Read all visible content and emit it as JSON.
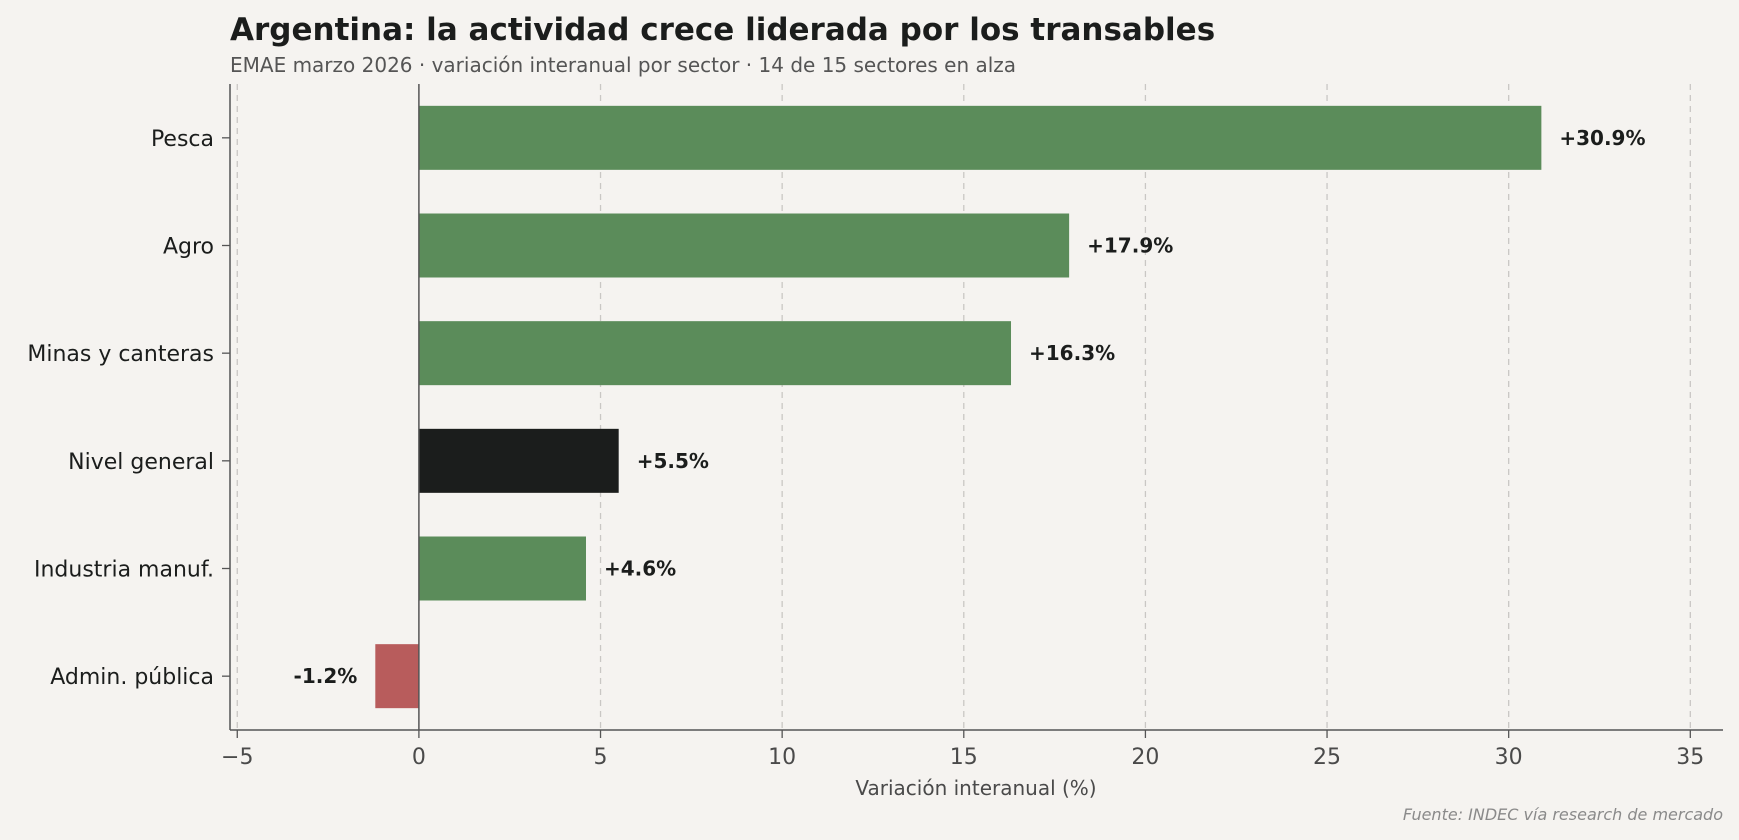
{
  "title": "Argentina: la actividad crece liderada por los transables",
  "subtitle": "EMAE marzo 2026 · variación interanual por sector · 14 de 15 sectores en alza",
  "source": "Fuente: INDEC vía research de mercado",
  "chart_data": {
    "type": "bar",
    "orientation": "horizontal",
    "categories": [
      "Pesca",
      "Agro",
      "Minas y canteras",
      "Nivel general",
      "Industria manuf.",
      "Admin. pública"
    ],
    "values": [
      30.9,
      17.9,
      16.3,
      5.5,
      4.6,
      -1.2
    ],
    "value_labels": [
      "+30.9%",
      "+17.9%",
      "+16.3%",
      "+5.5%",
      "+4.6%",
      "-1.2%"
    ],
    "xlabel": "Variación interanual (%)",
    "ylabel": "",
    "xlim": [
      -5.2,
      35.9
    ],
    "xticks": [
      -5,
      0,
      5,
      10,
      15,
      20,
      25,
      30,
      35
    ],
    "xtick_labels": [
      "−5",
      "0",
      "5",
      "10",
      "15",
      "20",
      "25",
      "30",
      "35"
    ],
    "grid": "vertical dashed",
    "legend": "none",
    "colors": {
      "positive": "#5b8c5a",
      "negative": "#b85c5c",
      "highlight": "#1b1d1c",
      "background": "#f5f3f0"
    },
    "highlight_category": "Nivel general"
  }
}
